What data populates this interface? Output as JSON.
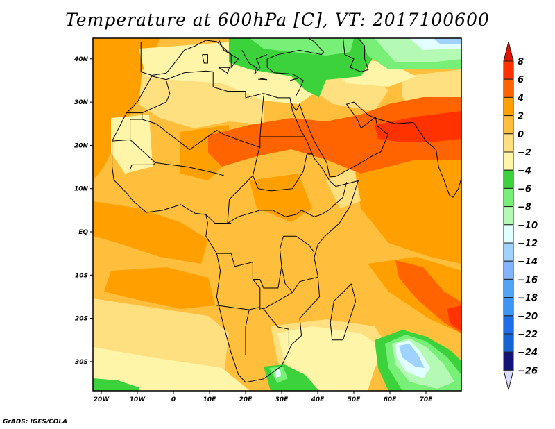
{
  "title": "Temperature at 600hPa [C], VT: 2017100600",
  "credit": "GrADS: IGES/COLA",
  "map": {
    "projection": "lat-lon",
    "lon_range": [
      -22,
      80
    ],
    "lat_range": [
      -36.5,
      45
    ],
    "x_ticks": [
      "20W",
      "10W",
      "0",
      "10E",
      "20E",
      "30E",
      "40E",
      "50E",
      "60E",
      "70E"
    ],
    "y_ticks": [
      "40N",
      "30N",
      "20N",
      "10N",
      "EQ",
      "10S",
      "20S",
      "30S"
    ]
  },
  "colorbar": {
    "labels": [
      "8",
      "6",
      "4",
      "2",
      "0",
      "-2",
      "-4",
      "-6",
      "-8",
      "-10",
      "-12",
      "-14",
      "-16",
      "-18",
      "-20",
      "-22",
      "-24",
      "-26"
    ],
    "top_arrow_color": "#e01400",
    "bottom_arrow_color": "#dcdcff",
    "colors": [
      "#ff3200",
      "#ff6400",
      "#ffa000",
      "#ffbe3c",
      "#ffe080",
      "#fff5a8",
      "#3cd23c",
      "#78f078",
      "#b4fab4",
      "#e1ffff",
      "#a0d2ff",
      "#82b4ff",
      "#50a5f5",
      "#3c96f5",
      "#1e6eeb",
      "#1464d2",
      "#141478"
    ]
  }
}
